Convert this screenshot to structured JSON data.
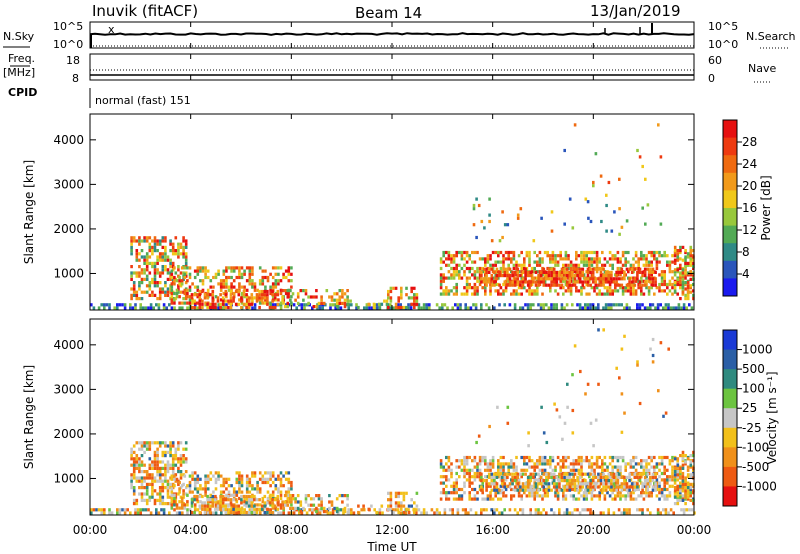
{
  "header": {
    "site": "Inuvik (fitACF)",
    "beam": "Beam 14",
    "date": "13/Jan/2019"
  },
  "strip_panels": {
    "nsky": {
      "left_label": "N.Sky",
      "right_label": "N.Search",
      "left_ticks": [
        "10^5",
        "10^0"
      ],
      "right_ticks": [
        "10^5",
        "10^0"
      ]
    },
    "freq": {
      "left_label_top": "Freq.",
      "left_label_bottom": "[MHz]",
      "right_label": "Nave",
      "left_ticks": [
        "18",
        "8"
      ],
      "right_ticks": [
        "60",
        "0"
      ]
    },
    "cpid": {
      "label": "CPID",
      "mode_text": "normal (fast) 151"
    }
  },
  "chart_data": [
    {
      "type": "heatmap",
      "title": "",
      "ylabel": "Slant Range [km]",
      "yticks": [
        "1000",
        "2000",
        "3000",
        "4000"
      ],
      "ylim": [
        180,
        4580
      ],
      "xlim_hours": [
        0,
        24
      ],
      "colorbar": {
        "label": "Power [dB]",
        "tick_labels": [
          "4",
          "8",
          "12",
          "16",
          "20",
          "24",
          "28"
        ],
        "colors": [
          "#1a1aee",
          "#2a55bb",
          "#2f8a86",
          "#52aa55",
          "#98c83c",
          "#f0c81a",
          "#f29a1a",
          "#ef6a10",
          "#ee3a10",
          "#e61010"
        ]
      }
    },
    {
      "type": "heatmap",
      "title": "",
      "ylabel": "Slant Range [km]",
      "yticks": [
        "1000",
        "2000",
        "3000",
        "4000"
      ],
      "ylim": [
        180,
        4580
      ],
      "xlim_hours": [
        0,
        24
      ],
      "colorbar": {
        "label": "Velocity [m s⁻¹]",
        "tick_labels": [
          "1000",
          "500",
          "100",
          "25",
          "-25",
          "-100",
          "-500",
          "-1000"
        ],
        "colors": [
          "#1a3ad6",
          "#2b5fa6",
          "#2f8a7f",
          "#6cc440",
          "#c6c6c6",
          "#f2c01a",
          "#f0901a",
          "#ee5a12",
          "#e61010"
        ]
      }
    }
  ],
  "time_axis": {
    "tick_labels": [
      "00:00",
      "04:00",
      "08:00",
      "12:00",
      "16:00",
      "20:00",
      "00:00"
    ],
    "label": "Time UT"
  }
}
